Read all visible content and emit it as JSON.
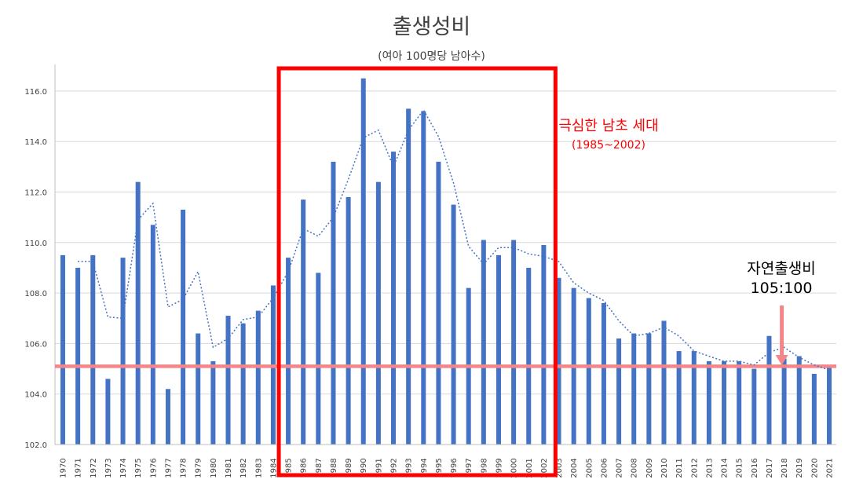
{
  "chart_data": {
    "type": "bar",
    "title": "출생성비",
    "subtitle": "(여아 100명당 남아수)",
    "categories": [
      "1970",
      "1971",
      "1972",
      "1973",
      "1974",
      "1975",
      "1976",
      "1977",
      "1978",
      "1979",
      "1980",
      "1981",
      "1982",
      "1983",
      "1984",
      "1985",
      "1986",
      "1987",
      "1988",
      "1989",
      "1990",
      "1991",
      "1992",
      "1993",
      "1994",
      "1995",
      "1996",
      "1997",
      "1998",
      "1999",
      "2000",
      "2001",
      "2002",
      "2003",
      "2004",
      "2005",
      "2006",
      "2007",
      "2008",
      "2009",
      "2010",
      "2011",
      "2012",
      "2013",
      "2014",
      "2015",
      "2016",
      "2017",
      "2018",
      "2019",
      "2020",
      "2021"
    ],
    "values": [
      109.5,
      109.0,
      109.5,
      104.6,
      109.4,
      112.4,
      110.7,
      104.2,
      111.3,
      106.4,
      105.3,
      107.1,
      106.8,
      107.3,
      108.3,
      109.4,
      111.7,
      108.8,
      113.2,
      111.8,
      116.5,
      112.4,
      113.6,
      115.3,
      115.2,
      113.2,
      111.5,
      108.2,
      110.1,
      109.5,
      110.1,
      109.0,
      109.9,
      108.6,
      108.2,
      107.8,
      107.6,
      106.2,
      106.4,
      106.4,
      106.9,
      105.7,
      105.7,
      105.3,
      105.3,
      105.3,
      105.0,
      106.3,
      105.4,
      105.5,
      104.8,
      105.1
    ],
    "ylim": [
      102,
      117.5
    ],
    "yticks": [
      "102.0",
      "104.0",
      "106.0",
      "108.0",
      "110.0",
      "112.0",
      "114.0",
      "116.0"
    ],
    "trendline": "2-period moving average (dotted)",
    "reference_line": {
      "value": 105.1,
      "color": "#f4868a"
    },
    "highlight": {
      "from": "1985",
      "to": "2002",
      "color": "#ff0000"
    },
    "annotations": {
      "highlight_label": "극심한 남초 세대",
      "highlight_range": "(1985~2002)",
      "natural_label": "자연출생비",
      "natural_ratio": "105:100"
    },
    "colors": {
      "bar": "#4472c4",
      "trend": "#4472c4",
      "grid": "#d9d9d9",
      "text": "#404040"
    },
    "grid": true
  }
}
